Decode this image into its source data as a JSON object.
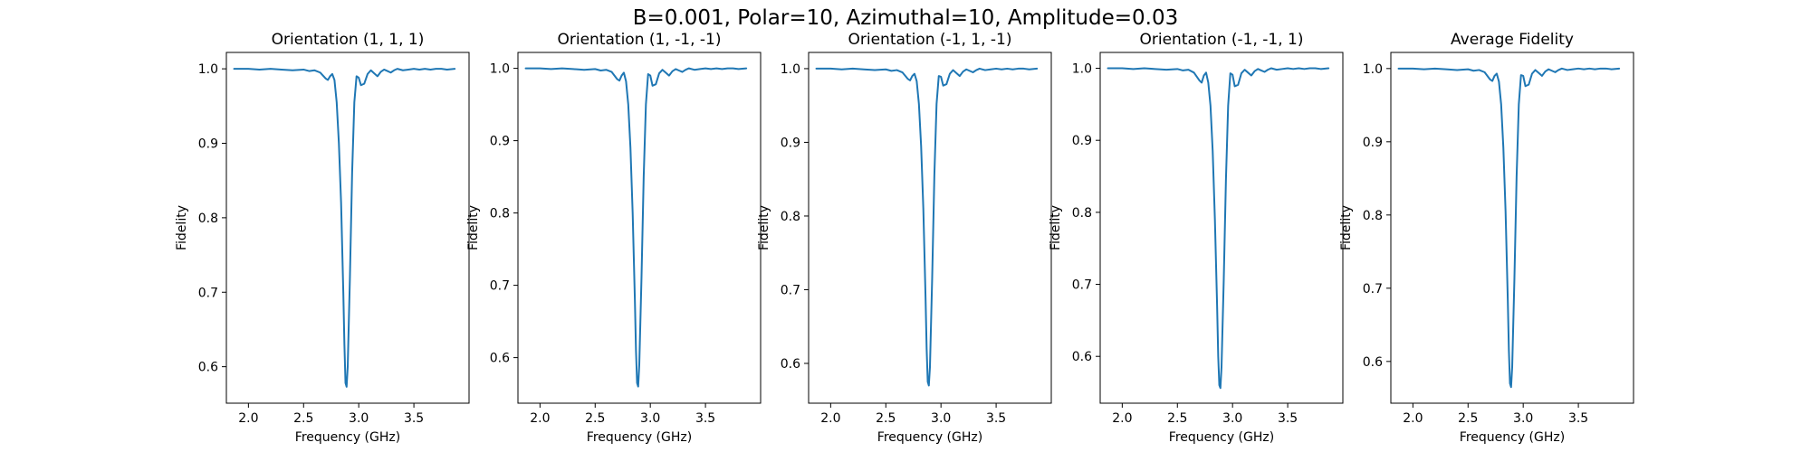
{
  "figure": {
    "suptitle": "B=0.001, Polar=10, Azimuthal=10, Amplitude=0.03",
    "line_color": "#1f77b4"
  },
  "chart_data": [
    {
      "type": "line",
      "title": "Orientation (1, 1, 1)",
      "xlabel": "Frequency (GHz)",
      "ylabel": "Fidelity",
      "xlim": [
        1.8,
        4.0
      ],
      "ylim": [
        0.551,
        1.022
      ],
      "xticks": [
        2.0,
        2.5,
        3.0,
        3.5
      ],
      "yticks": [
        0.6,
        0.7,
        0.8,
        0.9,
        1.0
      ],
      "grid": false,
      "series": [
        {
          "x": [
            1.87,
            2.0,
            2.1,
            2.2,
            2.3,
            2.4,
            2.5,
            2.55,
            2.6,
            2.65,
            2.7,
            2.72,
            2.74,
            2.76,
            2.78,
            2.8,
            2.82,
            2.84,
            2.86,
            2.87,
            2.88,
            2.89,
            2.9,
            2.92,
            2.94,
            2.96,
            2.98,
            3.0,
            3.02,
            3.05,
            3.08,
            3.11,
            3.14,
            3.17,
            3.2,
            3.23,
            3.26,
            3.29,
            3.32,
            3.35,
            3.4,
            3.45,
            3.5,
            3.55,
            3.6,
            3.65,
            3.7,
            3.75,
            3.8,
            3.87
          ],
          "y": [
            1.0,
            1.0,
            0.999,
            1.0,
            0.999,
            0.998,
            0.999,
            0.997,
            0.998,
            0.995,
            0.987,
            0.985,
            0.99,
            0.993,
            0.985,
            0.955,
            0.9,
            0.82,
            0.7,
            0.63,
            0.578,
            0.573,
            0.6,
            0.72,
            0.86,
            0.955,
            0.99,
            0.988,
            0.978,
            0.98,
            0.993,
            0.998,
            0.994,
            0.99,
            0.996,
            0.999,
            0.997,
            0.995,
            0.998,
            1.0,
            0.998,
            0.999,
            1.0,
            0.999,
            1.0,
            0.999,
            1.0,
            1.0,
            0.999,
            1.0
          ]
        }
      ]
    },
    {
      "type": "line",
      "title": "Orientation (1, -1, -1)",
      "xlabel": "Frequency (GHz)",
      "ylabel": "Fidelity",
      "xlim": [
        1.8,
        4.0
      ],
      "ylim": [
        0.537,
        1.022
      ],
      "xticks": [
        2.0,
        2.5,
        3.0,
        3.5
      ],
      "yticks": [
        0.6,
        0.7,
        0.8,
        0.9,
        1.0
      ],
      "grid": false,
      "series": [
        {
          "x": [
            1.87,
            2.0,
            2.1,
            2.2,
            2.3,
            2.4,
            2.5,
            2.55,
            2.6,
            2.65,
            2.7,
            2.72,
            2.74,
            2.76,
            2.78,
            2.8,
            2.82,
            2.84,
            2.86,
            2.87,
            2.88,
            2.89,
            2.9,
            2.92,
            2.94,
            2.96,
            2.98,
            3.0,
            3.02,
            3.05,
            3.08,
            3.11,
            3.14,
            3.17,
            3.2,
            3.23,
            3.26,
            3.29,
            3.32,
            3.35,
            3.4,
            3.45,
            3.5,
            3.55,
            3.6,
            3.65,
            3.7,
            3.75,
            3.8,
            3.87
          ],
          "y": [
            1.0,
            1.0,
            0.999,
            1.0,
            0.999,
            0.998,
            0.999,
            0.997,
            0.998,
            0.995,
            0.985,
            0.983,
            0.99,
            0.994,
            0.982,
            0.95,
            0.89,
            0.8,
            0.68,
            0.61,
            0.565,
            0.56,
            0.59,
            0.71,
            0.85,
            0.95,
            0.992,
            0.99,
            0.976,
            0.978,
            0.993,
            0.998,
            0.994,
            0.99,
            0.996,
            0.999,
            0.997,
            0.995,
            0.998,
            1.0,
            0.998,
            0.999,
            1.0,
            0.999,
            1.0,
            0.999,
            1.0,
            1.0,
            0.999,
            1.0
          ]
        }
      ]
    },
    {
      "type": "line",
      "title": "Orientation (-1, 1, -1)",
      "xlabel": "Frequency (GHz)",
      "ylabel": "Fidelity",
      "xlim": [
        1.8,
        4.0
      ],
      "ylim": [
        0.546,
        1.022
      ],
      "xticks": [
        2.0,
        2.5,
        3.0,
        3.5
      ],
      "yticks": [
        0.6,
        0.7,
        0.8,
        0.9,
        1.0
      ],
      "grid": false,
      "series": [
        {
          "x": [
            1.87,
            2.0,
            2.1,
            2.2,
            2.3,
            2.4,
            2.5,
            2.55,
            2.6,
            2.65,
            2.7,
            2.72,
            2.74,
            2.76,
            2.78,
            2.8,
            2.82,
            2.84,
            2.86,
            2.87,
            2.88,
            2.89,
            2.9,
            2.92,
            2.94,
            2.96,
            2.98,
            3.0,
            3.02,
            3.05,
            3.08,
            3.11,
            3.14,
            3.17,
            3.2,
            3.23,
            3.26,
            3.29,
            3.32,
            3.35,
            3.4,
            3.45,
            3.5,
            3.55,
            3.6,
            3.65,
            3.7,
            3.75,
            3.8,
            3.87
          ],
          "y": [
            1.0,
            1.0,
            0.999,
            1.0,
            0.999,
            0.998,
            0.999,
            0.997,
            0.998,
            0.995,
            0.986,
            0.984,
            0.99,
            0.993,
            0.983,
            0.952,
            0.895,
            0.81,
            0.69,
            0.62,
            0.575,
            0.57,
            0.595,
            0.715,
            0.855,
            0.952,
            0.99,
            0.989,
            0.977,
            0.979,
            0.993,
            0.998,
            0.994,
            0.99,
            0.996,
            0.999,
            0.997,
            0.995,
            0.998,
            1.0,
            0.998,
            0.999,
            1.0,
            0.999,
            1.0,
            0.999,
            1.0,
            1.0,
            0.999,
            1.0
          ]
        }
      ]
    },
    {
      "type": "line",
      "title": "Orientation (-1, -1, 1)",
      "xlabel": "Frequency (GHz)",
      "ylabel": "Fidelity",
      "xlim": [
        1.8,
        4.0
      ],
      "ylim": [
        0.535,
        1.022
      ],
      "xticks": [
        2.0,
        2.5,
        3.0,
        3.5
      ],
      "yticks": [
        0.6,
        0.7,
        0.8,
        0.9,
        1.0
      ],
      "grid": false,
      "series": [
        {
          "x": [
            1.87,
            2.0,
            2.1,
            2.2,
            2.3,
            2.4,
            2.5,
            2.55,
            2.6,
            2.65,
            2.7,
            2.72,
            2.74,
            2.76,
            2.78,
            2.8,
            2.82,
            2.84,
            2.86,
            2.87,
            2.88,
            2.89,
            2.9,
            2.92,
            2.94,
            2.96,
            2.98,
            3.0,
            3.02,
            3.05,
            3.08,
            3.11,
            3.14,
            3.17,
            3.2,
            3.23,
            3.26,
            3.29,
            3.32,
            3.35,
            3.4,
            3.45,
            3.5,
            3.55,
            3.6,
            3.65,
            3.7,
            3.75,
            3.8,
            3.87
          ],
          "y": [
            1.0,
            1.0,
            0.999,
            1.0,
            0.999,
            0.998,
            0.999,
            0.997,
            0.998,
            0.994,
            0.983,
            0.98,
            0.99,
            0.994,
            0.98,
            0.948,
            0.885,
            0.79,
            0.67,
            0.6,
            0.56,
            0.556,
            0.585,
            0.705,
            0.845,
            0.948,
            0.993,
            0.991,
            0.975,
            0.977,
            0.993,
            0.998,
            0.994,
            0.99,
            0.996,
            0.999,
            0.997,
            0.995,
            0.998,
            1.0,
            0.998,
            0.999,
            1.0,
            0.999,
            1.0,
            0.999,
            1.0,
            1.0,
            0.999,
            1.0
          ]
        }
      ]
    },
    {
      "type": "line",
      "title": "Average Fidelity",
      "xlabel": "Frequency (GHz)",
      "ylabel": "Fidelity",
      "xlim": [
        1.8,
        4.0
      ],
      "ylim": [
        0.543,
        1.022
      ],
      "xticks": [
        2.0,
        2.5,
        3.0,
        3.5
      ],
      "yticks": [
        0.6,
        0.7,
        0.8,
        0.9,
        1.0
      ],
      "grid": false,
      "series": [
        {
          "x": [
            1.87,
            2.0,
            2.1,
            2.2,
            2.3,
            2.4,
            2.5,
            2.55,
            2.6,
            2.65,
            2.7,
            2.72,
            2.74,
            2.76,
            2.78,
            2.8,
            2.82,
            2.84,
            2.86,
            2.87,
            2.88,
            2.89,
            2.9,
            2.92,
            2.94,
            2.96,
            2.98,
            3.0,
            3.02,
            3.05,
            3.08,
            3.11,
            3.14,
            3.17,
            3.2,
            3.23,
            3.26,
            3.29,
            3.32,
            3.35,
            3.4,
            3.45,
            3.5,
            3.55,
            3.6,
            3.65,
            3.7,
            3.75,
            3.8,
            3.87
          ],
          "y": [
            1.0,
            1.0,
            0.999,
            1.0,
            0.999,
            0.998,
            0.999,
            0.997,
            0.998,
            0.995,
            0.985,
            0.983,
            0.99,
            0.993,
            0.982,
            0.951,
            0.892,
            0.805,
            0.685,
            0.615,
            0.57,
            0.565,
            0.592,
            0.712,
            0.852,
            0.951,
            0.991,
            0.99,
            0.976,
            0.978,
            0.993,
            0.998,
            0.994,
            0.99,
            0.996,
            0.999,
            0.997,
            0.995,
            0.998,
            1.0,
            0.998,
            0.999,
            1.0,
            0.999,
            1.0,
            0.999,
            1.0,
            1.0,
            0.999,
            1.0
          ]
        }
      ]
    }
  ]
}
